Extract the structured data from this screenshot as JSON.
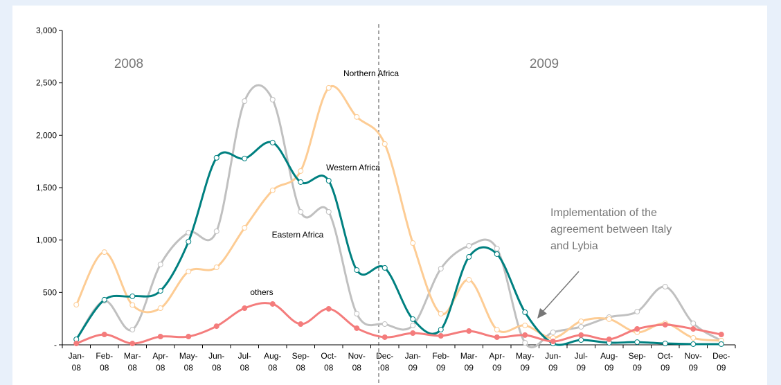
{
  "chart_data": {
    "type": "line",
    "categories": [
      "Jan-08",
      "Feb-08",
      "Mar-08",
      "Apr-08",
      "May-08",
      "Jun-08",
      "Jul-08",
      "Aug-08",
      "Sep-08",
      "Oct-08",
      "Nov-08",
      "Dec-08",
      "Jan-09",
      "Feb-09",
      "Mar-09",
      "Apr-09",
      "May-09",
      "Jun-09",
      "Jul-09",
      "Aug-09",
      "Sep-09",
      "Oct-09",
      "Nov-09",
      "Dec-09"
    ],
    "series": [
      {
        "name": "Eastern Africa",
        "color": "#c0c0c0",
        "filled": false,
        "values": [
          50,
          420,
          145,
          767,
          1071,
          1084,
          2326,
          2340,
          1269,
          1269,
          297,
          198,
          185,
          727,
          945,
          919,
          20,
          120,
          172,
          264,
          317,
          555,
          205,
          40
        ]
      },
      {
        "name": "Northern Africa",
        "color": "#fdcc94",
        "filled": false,
        "values": [
          383,
          885,
          380,
          350,
          700,
          740,
          1117,
          1474,
          1659,
          2452,
          2175,
          1917,
          971,
          297,
          621,
          145,
          185,
          66,
          225,
          245,
          120,
          205,
          66,
          40
        ]
      },
      {
        "name": "Western Africa",
        "color": "#008080",
        "filled": false,
        "values": [
          53,
          430,
          463,
          515,
          985,
          1785,
          1778,
          1930,
          1553,
          1566,
          714,
          734,
          245,
          145,
          839,
          866,
          311,
          13,
          46,
          20,
          26,
          13,
          7,
          7
        ]
      },
      {
        "name": "others",
        "color": "#f47c7c",
        "filled": true,
        "values": [
          13,
          99,
          13,
          79,
          79,
          178,
          350,
          390,
          198,
          344,
          159,
          73,
          112,
          86,
          132,
          73,
          93,
          33,
          93,
          53,
          152,
          192,
          152,
          99
        ]
      }
    ],
    "ylim": [
      0,
      3000
    ],
    "yticks": [
      {
        "value": 0,
        "label": "-"
      },
      {
        "value": 500,
        "label": "500"
      },
      {
        "value": 1000,
        "label": "1,000"
      },
      {
        "value": 1500,
        "label": "1,500"
      },
      {
        "value": 2000,
        "label": "2,000"
      },
      {
        "value": 2500,
        "label": "2,500"
      },
      {
        "value": 3000,
        "label": "3,000"
      }
    ],
    "grid": false,
    "annotations": [
      "2008",
      "2009"
    ],
    "note": [
      "Implementation of the",
      "agreement between Italy",
      "and Lybia"
    ]
  }
}
